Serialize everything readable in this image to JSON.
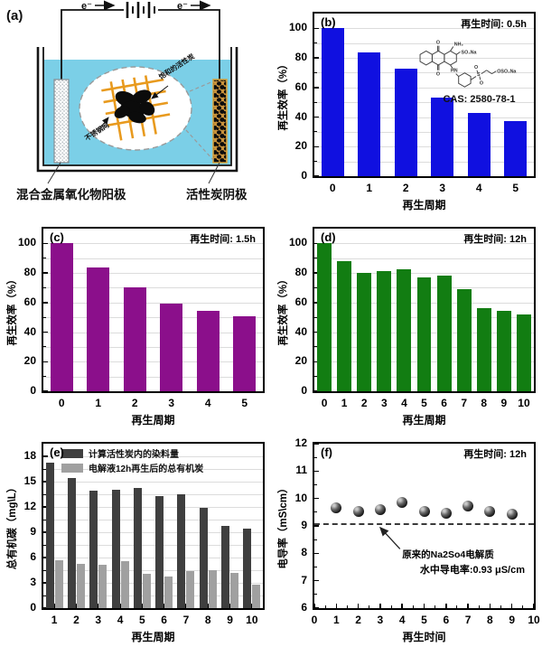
{
  "panel_a": {
    "label": "(a)",
    "electron": "e⁻",
    "saturated_carbon_label": "饱和的活性炭",
    "mesh_label": "不锈钢网",
    "anode_label": "混合金属氧化物阳极",
    "cathode_label": "活性炭阴极",
    "liquid_color": "#7BCFE7",
    "grid_color": "#E89A1E"
  },
  "panel_b_structure": {
    "cas": "CAS: 2580-78-1",
    "atoms": [
      "O",
      "O",
      "NH₂",
      "SO₃Na",
      "HN",
      "S",
      "O",
      "O",
      "OSO₃Na"
    ]
  },
  "chart_data": [
    {
      "id": "b",
      "type": "bar",
      "panel_label": "(b)",
      "title_note": "再生时间: 0.5h",
      "xlabel": "再生周期",
      "ylabel": "再生效率（%）",
      "categories": [
        "0",
        "1",
        "2",
        "3",
        "4",
        "5"
      ],
      "values": [
        100,
        84,
        73,
        53,
        43,
        37
      ],
      "ylim": [
        0,
        110
      ],
      "yticks": [
        0,
        20,
        40,
        60,
        80,
        100
      ],
      "yminor": 10,
      "grid": 10,
      "bar_color": "#1010e0",
      "bar_frac": 0.62
    },
    {
      "id": "c",
      "type": "bar",
      "panel_label": "(c)",
      "title_note": "再生时间: 1.5h",
      "xlabel": "再生周期",
      "ylabel": "再生效率（%）",
      "categories": [
        "0",
        "1",
        "2",
        "3",
        "4",
        "5"
      ],
      "values": [
        100,
        84,
        70,
        59.5,
        54.5,
        51
      ],
      "ylim": [
        0,
        110
      ],
      "yticks": [
        0,
        20,
        40,
        60,
        80,
        100
      ],
      "yminor": 10,
      "grid": 10,
      "bar_color": "#8b0f8b",
      "bar_frac": 0.62
    },
    {
      "id": "d",
      "type": "bar",
      "panel_label": "(d)",
      "title_note": "再生时间: 12h",
      "xlabel": "再生周期",
      "ylabel": "再生效率（%）",
      "categories": [
        "0",
        "1",
        "2",
        "3",
        "4",
        "5",
        "6",
        "7",
        "8",
        "9",
        "10"
      ],
      "values": [
        100,
        88,
        80,
        81,
        82.5,
        77,
        78,
        69,
        56.5,
        54.5,
        52
      ],
      "ylim": [
        0,
        110
      ],
      "yticks": [
        0,
        20,
        40,
        60,
        80,
        100
      ],
      "yminor": 10,
      "grid": 10,
      "bar_color": "#127d12",
      "bar_frac": 0.72
    },
    {
      "id": "e",
      "type": "groupbar",
      "panel_label": "(e)",
      "xlabel": "再生周期",
      "ylabel": "总有机碳（mg\\L）",
      "categories": [
        "1",
        "2",
        "3",
        "4",
        "5",
        "6",
        "7",
        "8",
        "9",
        "10"
      ],
      "series": [
        {
          "name": "计算活性炭内的染料量",
          "color": "#3f3f3f",
          "values": [
            17.3,
            15.4,
            13.9,
            14.0,
            14.3,
            13.3,
            13.5,
            11.9,
            9.8,
            9.4
          ]
        },
        {
          "name": "电解液12h再生后的总有机炭",
          "color": "#a0a0a0",
          "values": [
            5.7,
            5.3,
            5.1,
            5.6,
            4.1,
            3.8,
            4.4,
            4.5,
            4.2,
            2.8
          ]
        }
      ],
      "ylim": [
        0,
        19.5
      ],
      "yticks": [
        0,
        3,
        6,
        9,
        12,
        15,
        18
      ],
      "yminor": 1.5,
      "grid": 1.5,
      "legend": true
    },
    {
      "id": "f",
      "type": "scatter",
      "panel_label": "(f)",
      "title_note": "再生时间: 12h",
      "xlabel": "再生时间",
      "ylabel": "电导率（mS\\cm）",
      "x": [
        1,
        2,
        3,
        4,
        5,
        6,
        7,
        8,
        9
      ],
      "y": [
        9.67,
        9.52,
        9.6,
        9.85,
        9.52,
        9.45,
        9.72,
        9.52,
        9.42
      ],
      "xlim": [
        0,
        10
      ],
      "xticks": [
        0,
        1,
        2,
        3,
        4,
        5,
        6,
        7,
        8,
        9,
        10
      ],
      "xminor": 0.5,
      "ylim": [
        6,
        12
      ],
      "yticks": [
        6,
        7,
        8,
        9,
        10,
        11,
        12
      ],
      "yminor": 0.5,
      "hline": 9.1,
      "hline_label": "原来的Na2So4电解质",
      "hline_label_pos": {
        "x": 0.4,
        "y": 0.63
      },
      "arrow": {
        "x1": 0.39,
        "y1": 0.64,
        "x2": 0.3,
        "y2": 0.51
      },
      "bottom_note_pre": "水中导电率:",
      "bottom_note_bold": "0.93 μS/cm"
    }
  ]
}
